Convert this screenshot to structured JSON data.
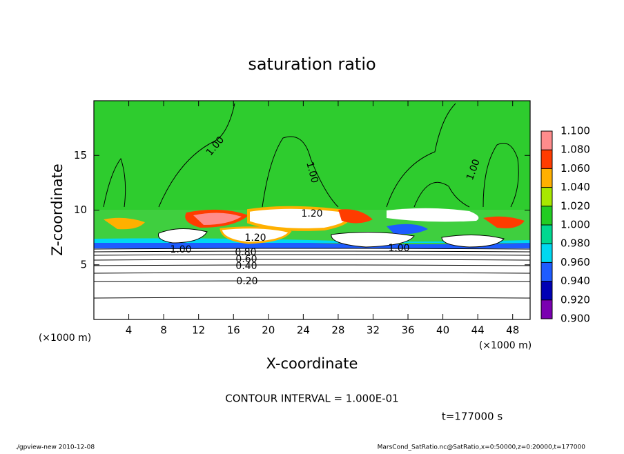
{
  "chart_data": {
    "type": "contour",
    "title": "saturation ratio",
    "xlabel": "X-coordinate",
    "ylabel": "Z-coordinate",
    "x_unit_labels": [
      "(×1000 m)",
      "(×1000 m)"
    ],
    "xlim": [
      0,
      50
    ],
    "ylim": [
      0,
      20
    ],
    "xticks": [
      4,
      8,
      12,
      16,
      20,
      24,
      28,
      32,
      36,
      40,
      44,
      48
    ],
    "yticks": [
      5,
      10,
      15
    ],
    "contour_labels": [
      "1.00",
      "1.00",
      "1.00",
      "1.20",
      "1.20",
      "1.00",
      "1.00",
      "0.80",
      "0.60",
      "0.40",
      "0.20"
    ],
    "contour_interval_text": "CONTOUR INTERVAL = 1.000E-01",
    "time_text": "t=177000 s",
    "footer_left": "./gpview-new  2010-12-08",
    "footer_right": "MarsCond_SatRatio.nc@SatRatio,x=0:50000,z=0:20000,t=177000",
    "colorbar": {
      "levels": [
        {
          "value": 0.9,
          "label": "0.900"
        },
        {
          "value": 0.92,
          "label": "0.920"
        },
        {
          "value": 0.94,
          "label": "0.940"
        },
        {
          "value": 0.96,
          "label": "0.960"
        },
        {
          "value": 0.98,
          "label": "0.980"
        },
        {
          "value": 1.0,
          "label": "1.000"
        },
        {
          "value": 1.02,
          "label": "1.020"
        },
        {
          "value": 1.04,
          "label": "1.040"
        },
        {
          "value": 1.06,
          "label": "1.060"
        },
        {
          "value": 1.08,
          "label": "1.080"
        },
        {
          "value": 1.1,
          "label": "1.100"
        }
      ],
      "colors": [
        "#7a00b0",
        "#0000b4",
        "#1e5cff",
        "#00d8f0",
        "#00d890",
        "#22cc22",
        "#a8e800",
        "#ffb000",
        "#ff3c00",
        "#ff8c8c"
      ]
    }
  }
}
